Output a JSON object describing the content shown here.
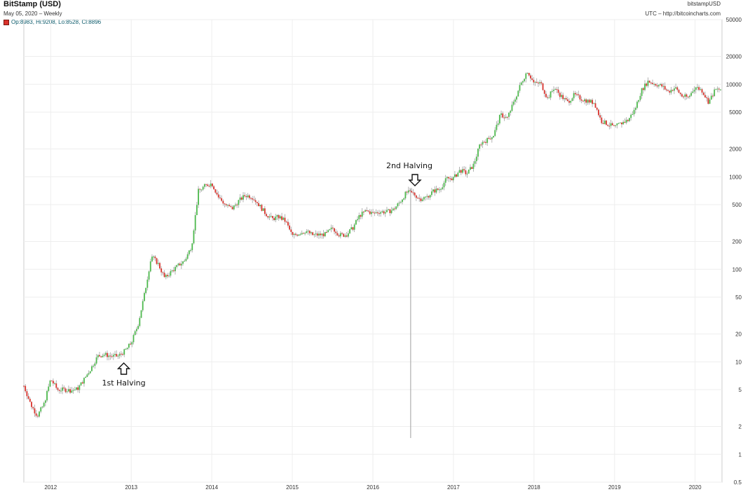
{
  "header": {
    "title": "BitStamp (USD)",
    "subtitle": "May 05, 2020 – Weekly",
    "ohlc": "Op:8983, Hi:9208, Lo:8528, Cl:8896",
    "source": "bitstampUSD",
    "source_url": "UTC – http://bitcoincharts.com"
  },
  "colors": {
    "up": "#4cb84c",
    "down": "#d9312b",
    "grid": "#eeeeee",
    "wick": "#a0a0a0"
  },
  "chart_data": {
    "type": "candlestick",
    "title": "BitStamp (USD)",
    "scale": "log",
    "ylim": [
      0.5,
      50000
    ],
    "xlim": [
      "2011-09",
      "2020-05"
    ],
    "y_ticks": [
      0.5,
      1,
      2,
      5,
      10,
      20,
      50,
      100,
      200,
      500,
      1000,
      2000,
      5000,
      10000,
      20000,
      50000
    ],
    "x_ticks": [
      "2012",
      "2013",
      "2014",
      "2015",
      "2016",
      "2017",
      "2018",
      "2019",
      "2020"
    ],
    "grid": true,
    "annotations": [
      {
        "label": "1st Halving",
        "date": "2012-11-28",
        "direction": "up"
      },
      {
        "label": "2nd Halving",
        "date": "2016-07-09",
        "direction": "down"
      }
    ],
    "spike": {
      "date": "2016-06-20",
      "high": 740,
      "low": 1.5
    },
    "price_path": [
      [
        "2011-09",
        5.5
      ],
      [
        "2011-10",
        3.5
      ],
      [
        "2011-11",
        2.6
      ],
      [
        "2011-12",
        3.5
      ],
      [
        "2012-01",
        6.5
      ],
      [
        "2012-02",
        5.0
      ],
      [
        "2012-03",
        5.0
      ],
      [
        "2012-04",
        4.9
      ],
      [
        "2012-05",
        5.1
      ],
      [
        "2012-06",
        6.5
      ],
      [
        "2012-07",
        8.5
      ],
      [
        "2012-08",
        11.5
      ],
      [
        "2012-09",
        12
      ],
      [
        "2012-10",
        11.5
      ],
      [
        "2012-11",
        11.5
      ],
      [
        "2012-12",
        13
      ],
      [
        "2013-01",
        16
      ],
      [
        "2013-02",
        25
      ],
      [
        "2013-03",
        55
      ],
      [
        "2013-04",
        140
      ],
      [
        "2013-05",
        115
      ],
      [
        "2013-06",
        80
      ],
      [
        "2013-07",
        95
      ],
      [
        "2013-08",
        110
      ],
      [
        "2013-09",
        125
      ],
      [
        "2013-10",
        180
      ],
      [
        "2013-11",
        700
      ],
      [
        "2013-12",
        800
      ],
      [
        "2014-01",
        850
      ],
      [
        "2014-02",
        600
      ],
      [
        "2014-03",
        500
      ],
      [
        "2014-04",
        450
      ],
      [
        "2014-05",
        550
      ],
      [
        "2014-06",
        630
      ],
      [
        "2014-07",
        610
      ],
      [
        "2014-08",
        500
      ],
      [
        "2014-09",
        400
      ],
      [
        "2014-10",
        350
      ],
      [
        "2014-11",
        370
      ],
      [
        "2014-12",
        330
      ],
      [
        "2015-01",
        230
      ],
      [
        "2015-02",
        245
      ],
      [
        "2015-03",
        260
      ],
      [
        "2015-04",
        235
      ],
      [
        "2015-05",
        236
      ],
      [
        "2015-06",
        240
      ],
      [
        "2015-07",
        280
      ],
      [
        "2015-08",
        235
      ],
      [
        "2015-09",
        235
      ],
      [
        "2015-10",
        280
      ],
      [
        "2015-11",
        380
      ],
      [
        "2015-12",
        430
      ],
      [
        "2016-01",
        400
      ],
      [
        "2016-02",
        420
      ],
      [
        "2016-03",
        415
      ],
      [
        "2016-04",
        440
      ],
      [
        "2016-05",
        530
      ],
      [
        "2016-06",
        680
      ],
      [
        "2016-07",
        660
      ],
      [
        "2016-08",
        575
      ],
      [
        "2016-09",
        605
      ],
      [
        "2016-10",
        700
      ],
      [
        "2016-11",
        740
      ],
      [
        "2016-12",
        960
      ],
      [
        "2017-01",
        965
      ],
      [
        "2017-02",
        1180
      ],
      [
        "2017-03",
        1080
      ],
      [
        "2017-04",
        1350
      ],
      [
        "2017-05",
        2300
      ],
      [
        "2017-06",
        2500
      ],
      [
        "2017-07",
        2850
      ],
      [
        "2017-08",
        4700
      ],
      [
        "2017-09",
        4300
      ],
      [
        "2017-10",
        6400
      ],
      [
        "2017-11",
        10000
      ],
      [
        "2017-12",
        14000
      ],
      [
        "2018-01",
        10200
      ],
      [
        "2018-02",
        10300
      ],
      [
        "2018-03",
        7000
      ],
      [
        "2018-04",
        9200
      ],
      [
        "2018-05",
        7500
      ],
      [
        "2018-06",
        6400
      ],
      [
        "2018-07",
        7700
      ],
      [
        "2018-08",
        7000
      ],
      [
        "2018-09",
        6600
      ],
      [
        "2018-10",
        6300
      ],
      [
        "2018-11",
        4000
      ],
      [
        "2018-12",
        3700
      ],
      [
        "2019-01",
        3450
      ],
      [
        "2019-02",
        3800
      ],
      [
        "2019-03",
        4100
      ],
      [
        "2019-04",
        5300
      ],
      [
        "2019-05",
        8600
      ],
      [
        "2019-06",
        10800
      ],
      [
        "2019-07",
        10100
      ],
      [
        "2019-08",
        9600
      ],
      [
        "2019-09",
        8300
      ],
      [
        "2019-10",
        9200
      ],
      [
        "2019-11",
        7500
      ],
      [
        "2019-12",
        7200
      ],
      [
        "2020-01",
        9400
      ],
      [
        "2020-02",
        8600
      ],
      [
        "2020-03",
        6400
      ],
      [
        "2020-04",
        8700
      ],
      [
        "2020-05",
        8900
      ]
    ]
  }
}
